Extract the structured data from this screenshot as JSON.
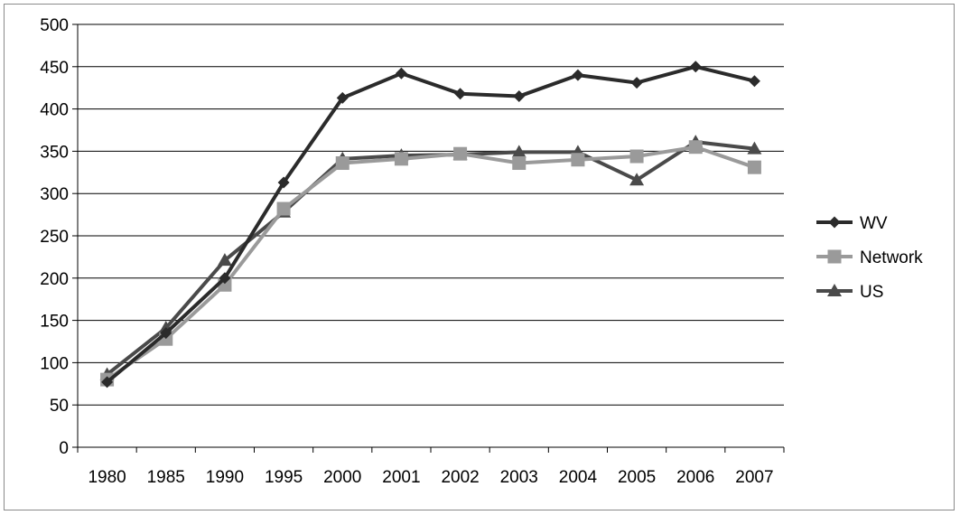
{
  "chart_data": {
    "type": "line",
    "title": "",
    "xlabel": "",
    "ylabel": "",
    "categories": [
      "1980",
      "1985",
      "1990",
      "1995",
      "2000",
      "2001",
      "2002",
      "2003",
      "2004",
      "2005",
      "2006",
      "2007"
    ],
    "ylim": [
      0,
      500
    ],
    "yticks": [
      "0",
      "50",
      "100",
      "150",
      "200",
      "250",
      "300",
      "350",
      "400",
      "450",
      "500"
    ],
    "grid": true,
    "legend_position": "right",
    "series": [
      {
        "name": "WV",
        "marker": "diamond",
        "color": "#2b2b2b",
        "values": [
          77,
          135,
          200,
          313,
          413,
          442,
          418,
          415,
          440,
          431,
          450,
          433
        ]
      },
      {
        "name": "Network",
        "marker": "square",
        "color": "#9a9a9a",
        "values": [
          80,
          128,
          192,
          282,
          336,
          341,
          347,
          336,
          340,
          344,
          355,
          331
        ]
      },
      {
        "name": "US",
        "marker": "triangle",
        "color": "#4a4a4a",
        "values": [
          86,
          141,
          221,
          278,
          341,
          345,
          346,
          349,
          349,
          316,
          361,
          353
        ]
      }
    ]
  }
}
